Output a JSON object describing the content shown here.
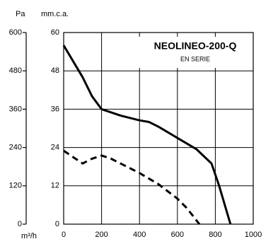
{
  "chart_data": {
    "type": "line",
    "title": "NEOLINEO-200-Q",
    "subtitle": "EN SERIE",
    "y_label": "mm.c.a.",
    "y2_label": "Pa",
    "x_label": "m³/h",
    "xlim": [
      0,
      1000
    ],
    "xticks": [
      0,
      200,
      400,
      600,
      800,
      1000
    ],
    "ylim": [
      0,
      60
    ],
    "yticks": [
      0,
      12,
      24,
      36,
      48,
      60
    ],
    "y2lim": [
      0,
      600
    ],
    "y2ticks": [
      0,
      120,
      240,
      360,
      480,
      600
    ],
    "grid": true,
    "series": [
      {
        "color": "#000000",
        "dashed": false,
        "x": [
          0,
          50,
          100,
          150,
          200,
          300,
          400,
          450,
          500,
          600,
          700,
          780,
          820,
          850,
          880
        ],
        "values": [
          56,
          51,
          46,
          40,
          36,
          34,
          32.5,
          32,
          30.5,
          27,
          23.5,
          19,
          12,
          6,
          0
        ]
      },
      {
        "color": "#000000",
        "dashed": true,
        "x": [
          0,
          50,
          100,
          150,
          200,
          250,
          300,
          400,
          500,
          600,
          650,
          716
        ],
        "values": [
          23,
          21,
          19,
          20.5,
          21.5,
          20.5,
          19,
          16,
          12.5,
          8,
          5,
          0
        ]
      }
    ]
  }
}
